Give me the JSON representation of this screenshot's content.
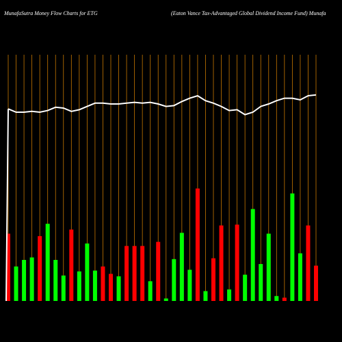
{
  "chart_data": {
    "type": "bar",
    "title": "MunafaSutra  Money Flow  Charts for ETG",
    "subtitle": "(Eaton  Vance   Tax-Advantaged Global Dividend Income   Fund) Munafa",
    "grid": true,
    "grid_color": "#c87800",
    "bar_series": {
      "values": [
        82,
        42,
        50,
        53,
        79,
        94,
        50,
        31,
        87,
        36,
        70,
        37,
        42,
        33,
        30,
        67,
        67,
        67,
        24,
        72,
        3,
        51,
        83,
        38,
        137,
        12,
        52,
        92,
        14,
        93,
        32,
        112,
        45,
        82,
        6,
        4,
        131,
        58,
        92,
        43
      ],
      "colors": [
        "#ff0000",
        "#00ff00",
        "#00ff00",
        "#00ff00",
        "#ff0000",
        "#00ff00",
        "#00ff00",
        "#00ff00",
        "#ff0000",
        "#00ff00",
        "#00ff00",
        "#00ff00",
        "#ff0000",
        "#ff0000",
        "#00ff00",
        "#ff0000",
        "#ff0000",
        "#ff0000",
        "#00ff00",
        "#ff0000",
        "#00ff00",
        "#00ff00",
        "#00ff00",
        "#00ff00",
        "#ff0000",
        "#00ff00",
        "#ff0000",
        "#ff0000",
        "#00ff00",
        "#ff0000",
        "#00ff00",
        "#00ff00",
        "#00ff00",
        "#00ff00",
        "#00ff00",
        "#ff0000",
        "#00ff00",
        "#00ff00",
        "#ff0000",
        "#ff0000"
      ]
    },
    "line_series": {
      "color": "#ffffff",
      "values": [
        234,
        230,
        230,
        231,
        230,
        232,
        236,
        235,
        231,
        233,
        237,
        241,
        241,
        240,
        240,
        241,
        242,
        241,
        242,
        240,
        237,
        238,
        243,
        247,
        250,
        244,
        241,
        237,
        232,
        233,
        227,
        230,
        237,
        240,
        244,
        247,
        247,
        245,
        250,
        251
      ]
    },
    "ymax": 300
  }
}
